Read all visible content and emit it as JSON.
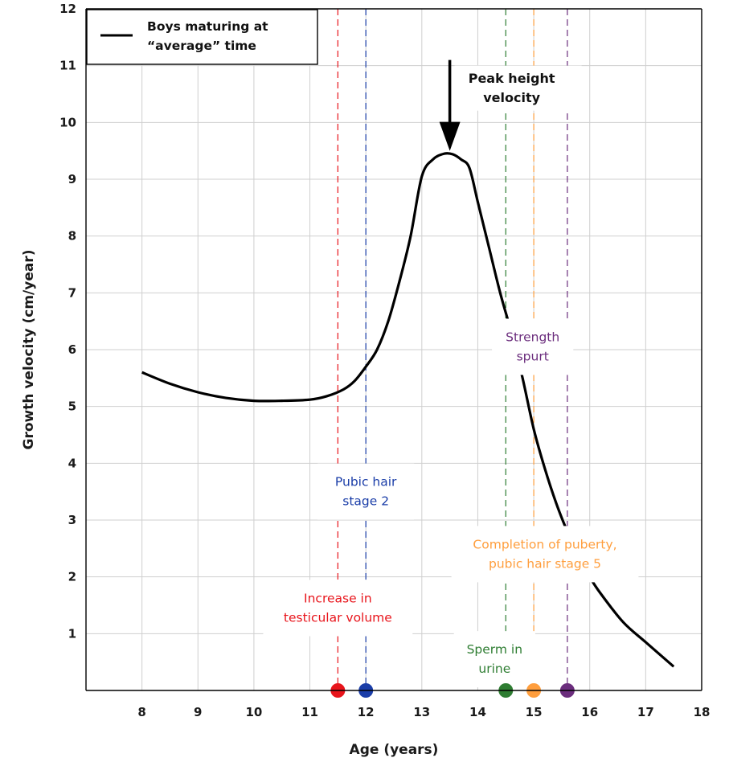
{
  "chart_data": {
    "type": "line",
    "xlabel": "Age (years)",
    "ylabel": "Growth velocity (cm/year)",
    "xlim": [
      7,
      18
    ],
    "ylim": [
      0,
      12
    ],
    "xticks": [
      8,
      9,
      10,
      11,
      12,
      13,
      14,
      15,
      16,
      17,
      18
    ],
    "yticks": [
      1,
      2,
      3,
      4,
      5,
      6,
      7,
      8,
      9,
      10,
      11,
      12
    ],
    "grid": true,
    "legend": {
      "placement": "top-left",
      "label_lines": [
        "Boys maturing at",
        "“average” time"
      ]
    },
    "series": [
      {
        "name": "Boys maturing at “average” time",
        "color": "#000000",
        "x": [
          8.0,
          8.5,
          9.0,
          9.5,
          10.0,
          10.5,
          11.0,
          11.3,
          11.6,
          11.8,
          12.0,
          12.2,
          12.4,
          12.6,
          12.8,
          13.0,
          13.2,
          13.4,
          13.55,
          13.7,
          13.85,
          14.0,
          14.2,
          14.4,
          14.6,
          14.8,
          15.0,
          15.2,
          15.4,
          15.6,
          15.8,
          16.0,
          16.2,
          16.6,
          17.0,
          17.5
        ],
        "y": [
          5.6,
          5.4,
          5.25,
          5.15,
          5.1,
          5.1,
          5.12,
          5.18,
          5.3,
          5.45,
          5.7,
          6.0,
          6.5,
          7.2,
          8.0,
          9.05,
          9.35,
          9.45,
          9.44,
          9.35,
          9.2,
          8.6,
          7.8,
          7.0,
          6.3,
          5.5,
          4.6,
          3.9,
          3.3,
          2.8,
          2.4,
          2.0,
          1.7,
          1.2,
          0.85,
          0.42
        ]
      }
    ],
    "peak_annotation": {
      "lines": [
        "Peak height",
        "velocity"
      ],
      "x": 13.5,
      "arrow_from_y": 11.1,
      "arrow_to_y": 9.5
    },
    "markers": [
      {
        "age": 11.5,
        "color": "#e8141b",
        "label_lines": [
          "Increase in",
          "testicular volume"
        ],
        "label_center": [
          11.5,
          1.45
        ]
      },
      {
        "age": 12.0,
        "color": "#1a3da8",
        "label_lines": [
          "Pubic hair",
          "stage 2"
        ],
        "label_center": [
          12.0,
          3.5
        ]
      },
      {
        "age": 14.5,
        "color": "#2e7d32",
        "label_lines": [
          "Sperm in",
          "urine"
        ],
        "label_center": [
          14.3,
          0.55
        ]
      },
      {
        "age": 15.0,
        "color": "#ff9e3d",
        "label_lines": [
          "Completion of puberty,",
          "pubic hair stage 5"
        ],
        "label_center": [
          15.2,
          2.4
        ]
      },
      {
        "age": 15.6,
        "color": "#6b2d7d",
        "label_lines": [
          "Strength",
          "spurt"
        ],
        "label_center": [
          14.98,
          6.05
        ]
      }
    ]
  }
}
